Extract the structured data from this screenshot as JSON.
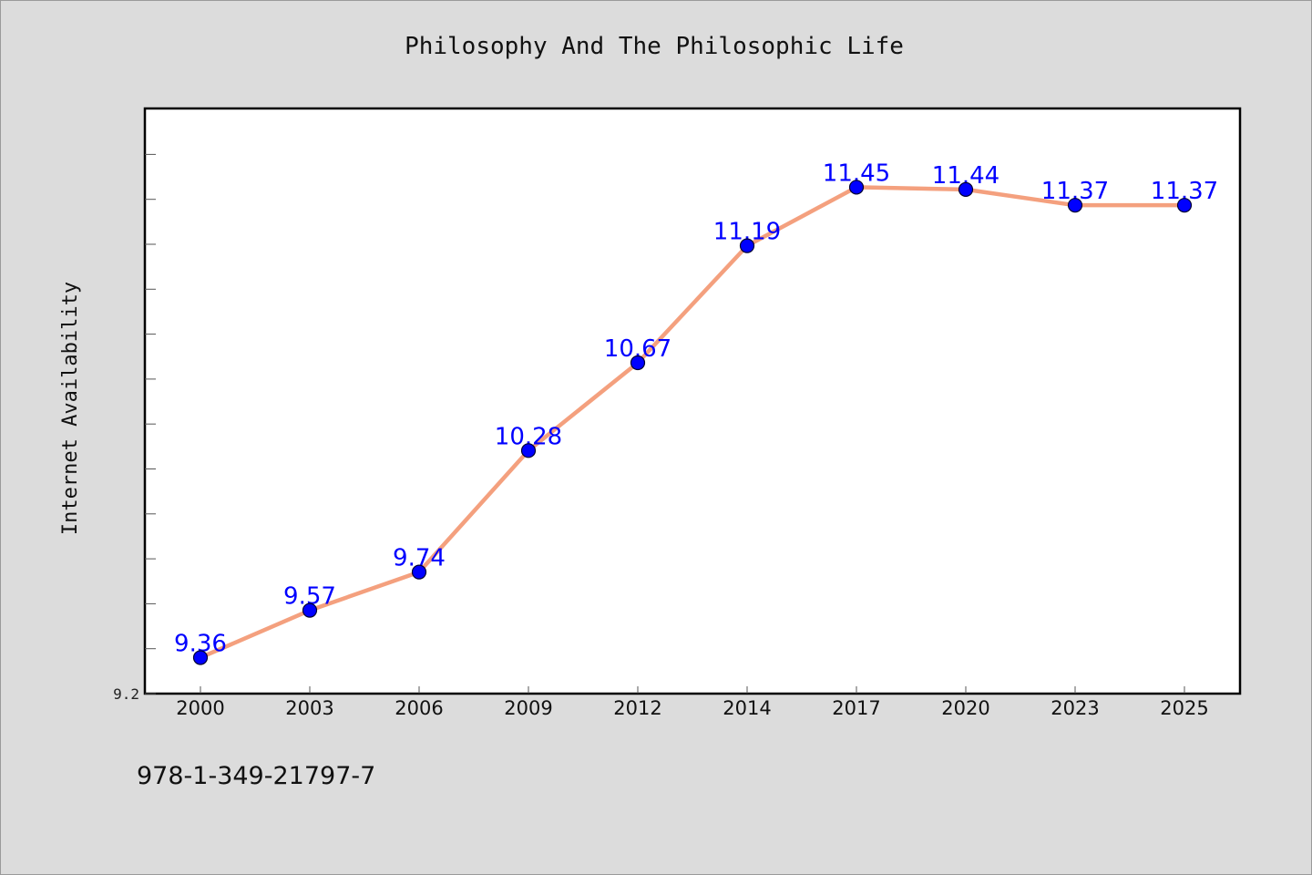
{
  "colors": {
    "background": "#dcdcdc",
    "plot_background": "#ffffff",
    "line": "#f4a07e",
    "marker": "#0000ff",
    "data_label": "#0000ff",
    "axis": "#000000"
  },
  "footer": {
    "isbn": "978-1-349-21797-7"
  },
  "chart_data": {
    "type": "line",
    "title": "Philosophy And The Philosophic Life",
    "xlabel": "",
    "ylabel": "Internet Availability",
    "categories": [
      "2000",
      "2003",
      "2006",
      "2009",
      "2012",
      "2014",
      "2017",
      "2020",
      "2023",
      "2025"
    ],
    "series": [
      {
        "values": [
          9.36,
          9.57,
          9.74,
          10.28,
          10.67,
          11.19,
          11.45,
          11.44,
          11.37,
          11.37
        ]
      }
    ],
    "data_labels": [
      "9.36",
      "9.57",
      "9.74",
      "10.28",
      "10.67",
      "11.19",
      "11.45",
      "11.44",
      "11.37",
      "11.37"
    ],
    "ylim": [
      9.2,
      11.8
    ],
    "y_tick_labels": [
      "9.2"
    ],
    "grid": false,
    "legend": "none"
  }
}
